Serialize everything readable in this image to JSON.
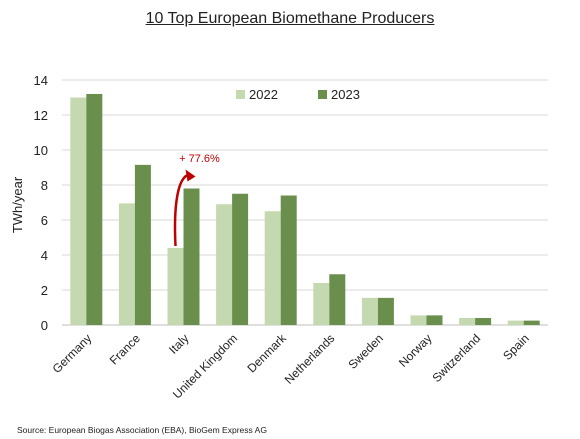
{
  "chart_data": {
    "type": "bar",
    "title": "10 Top European Biomethane Producers",
    "ylabel": "TWh/year",
    "xlabel": "",
    "ylim": [
      0,
      14
    ],
    "yticks": [
      "0",
      "2",
      "4",
      "6",
      "8",
      "10",
      "12",
      "14"
    ],
    "categories": [
      "Germany",
      "France",
      "Italy",
      "United Kingdom",
      "Denmark",
      "Netherlands",
      "Sweden",
      "Norway",
      "Switzerland",
      "Spain"
    ],
    "series": [
      {
        "name": "2022",
        "color": "#c5d9b0",
        "values": [
          13.0,
          6.95,
          4.4,
          6.9,
          6.5,
          2.4,
          1.55,
          0.55,
          0.4,
          0.25
        ]
      },
      {
        "name": "2023",
        "color": "#6a8f4d",
        "values": [
          13.2,
          9.15,
          7.8,
          7.5,
          7.4,
          2.9,
          1.55,
          0.55,
          0.4,
          0.25
        ]
      }
    ],
    "grid": true,
    "legend": "top-center",
    "annotation": {
      "text": "+ 77.6%",
      "category": "Italy",
      "color": "#c00000"
    }
  },
  "source": "Source: European Biogas Association (EBA), BioGem Express AG"
}
